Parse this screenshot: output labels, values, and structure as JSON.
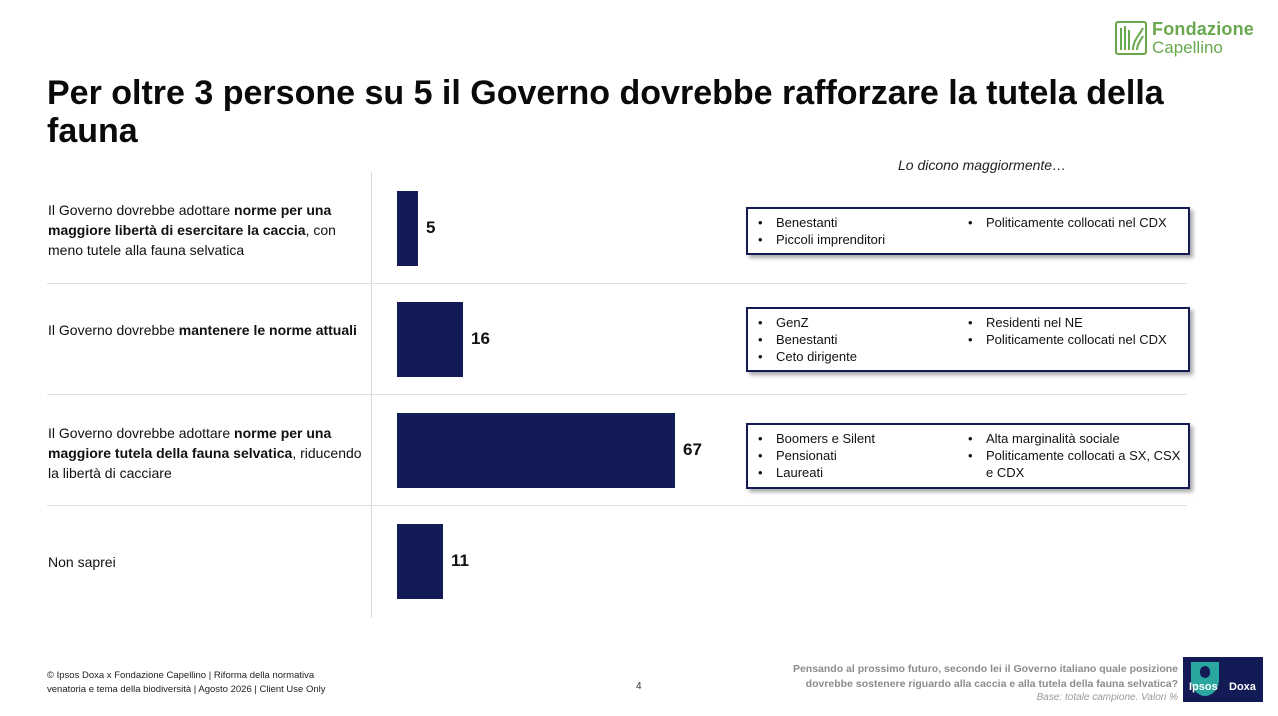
{
  "brand": {
    "name_line1": "Fondazione",
    "name_line2": "Capellino",
    "partner_logo": {
      "text1": "Ipsos",
      "text2": "Doxa"
    },
    "colors": {
      "bar": "#131b57",
      "brand_green": "#6aa84f",
      "ipsos_teal": "#2aa6a0"
    }
  },
  "title": "Per oltre 3 persone su 5 il Governo dovrebbe rafforzare la tutela della fauna",
  "subhead": "Lo dicono maggiormente…",
  "chart_data": {
    "type": "bar",
    "orientation": "horizontal",
    "unit": "%",
    "xlim": [
      0,
      100
    ],
    "grid": false,
    "categories": [
      [
        {
          "t": "Il Governo dovrebbe adottare ",
          "b": false
        },
        {
          "t": "norme per una maggiore libertà di esercitare la caccia",
          "b": true
        },
        {
          "t": ", con meno tutele alla fauna selvatica",
          "b": false
        }
      ],
      [
        {
          "t": "Il Governo dovrebbe ",
          "b": false
        },
        {
          "t": "mantenere le norme attuali",
          "b": true
        }
      ],
      [
        {
          "t": "Il Governo dovrebbe adottare ",
          "b": false
        },
        {
          "t": "norme per una maggiore tutela della fauna selvatica",
          "b": true
        },
        {
          "t": ", riducendo la libertà di cacciare",
          "b": false
        }
      ],
      [
        {
          "t": "Non saprei",
          "b": false
        }
      ]
    ],
    "values": [
      5,
      16,
      67,
      11
    ],
    "data_labels": [
      "5",
      "16",
      "67",
      "11"
    ]
  },
  "segments": [
    {
      "col1": [
        "Benestanti",
        "Piccoli imprenditori"
      ],
      "col2": [
        "Politicamente collocati nel CDX"
      ]
    },
    {
      "col1": [
        "GenZ",
        "Benestanti",
        "Ceto dirigente"
      ],
      "col2": [
        "Residenti nel NE",
        "Politicamente collocati nel CDX"
      ]
    },
    {
      "col1": [
        "Boomers e Silent",
        "Pensionati",
        "Laureati"
      ],
      "col2": [
        "Alta marginalità sociale",
        "Politicamente collocati a SX, CSX e CDX"
      ]
    }
  ],
  "footer": {
    "left_line1": "© Ipsos Doxa x Fondazione Capellino | Riforma della normativa",
    "left_line2": "venatoria e tema della biodiversità | Agosto 2026 | Client Use Only",
    "page": "4",
    "question_line1": "Pensando al prossimo futuro, secondo lei il Governo italiano quale posizione",
    "question_line2": "dovrebbe sostenere riguardo alla caccia e alla tutela della fauna selvatica?",
    "base": "Base: totale campione. Valori %"
  }
}
